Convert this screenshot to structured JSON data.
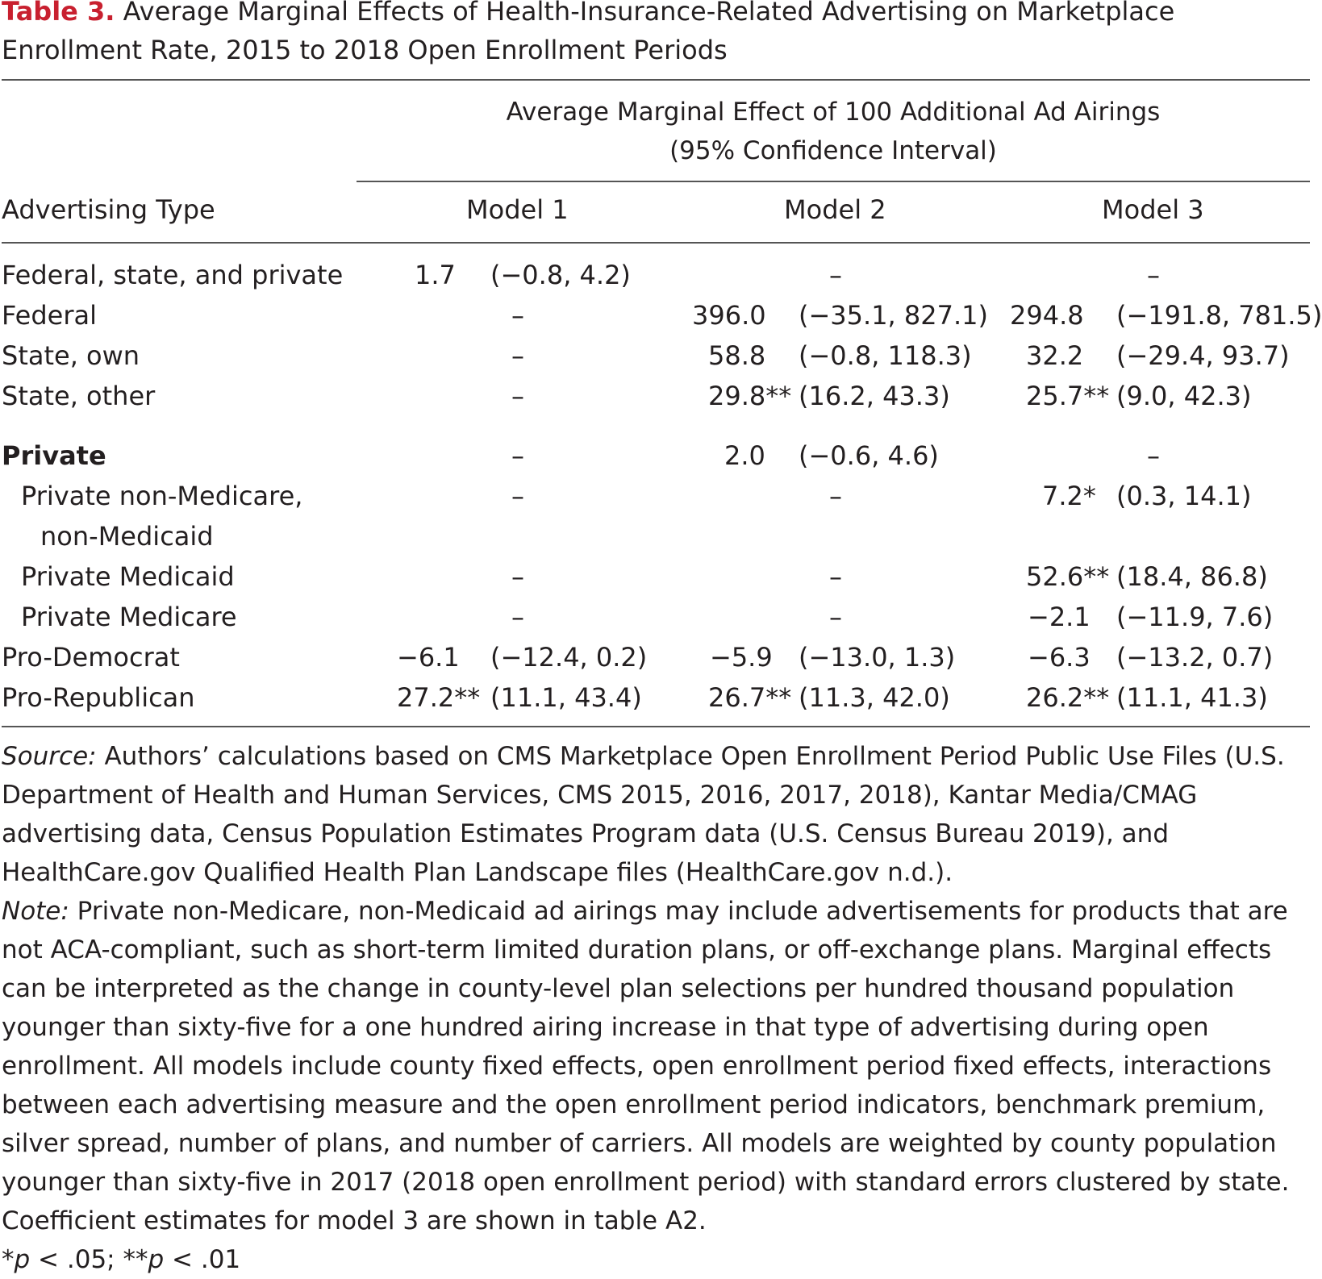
{
  "caption": {
    "table_number": "Table 3.",
    "title": "Average Marginal Effects of Health-Insurance-Related Advertising on Marketplace Enrollment Rate, 2015 to 2018 Open Enrollment Periods"
  },
  "header": {
    "spanner_line1": "Average Marginal Effect of 100 Additional Ad Airings",
    "spanner_line2": "(95% Confidence Interval)",
    "stub": "Advertising Type",
    "model1": "Model 1",
    "model2": "Model 2",
    "model3": "Model 3"
  },
  "rows": [
    {
      "label": "Federal, state, and private",
      "m1_est": "1.7",
      "m1_ci": "(−0.8, 4.2)",
      "m2_dash": "–",
      "m3_dash": "–"
    },
    {
      "label": "Federal",
      "m1_dash": "–",
      "m2_est": "396.0",
      "m2_ci": "(−35.1, 827.1)",
      "m3_est": "294.8",
      "m3_ci": "(−191.8, 781.5)"
    },
    {
      "label": "State, own",
      "m1_dash": "–",
      "m2_est": "58.8",
      "m2_ci": "(−0.8, 118.3)",
      "m3_est": "32.2",
      "m3_ci": "(−29.4, 93.7)"
    },
    {
      "label": "State, other",
      "m1_dash": "–",
      "m2_est": "29.8**",
      "m2_ci": "(16.2, 43.3)",
      "m3_est": "25.7**",
      "m3_ci": "(9.0, 42.3)"
    },
    {
      "label": "Private",
      "m1_dash": "–",
      "m2_est": "2.0",
      "m2_ci": "(−0.6, 4.6)",
      "m3_dash": "–"
    },
    {
      "label": "Private non-Medicare,",
      "label2": "non-Medicaid",
      "m1_dash": "–",
      "m2_dash": "–",
      "m3_est": "7.2*",
      "m3_ci": "(0.3, 14.1)"
    },
    {
      "label": "Private Medicaid",
      "m1_dash": "–",
      "m2_dash": "–",
      "m3_est": "52.6**",
      "m3_ci": "(18.4, 86.8)"
    },
    {
      "label": "Private Medicare",
      "m1_dash": "–",
      "m2_dash": "–",
      "m3_est": "−2.1",
      "m3_ci": "(−11.9, 7.6)"
    },
    {
      "label": "Pro-Democrat",
      "m1_est": "−6.1",
      "m1_ci": "(−12.4, 0.2)",
      "m2_est": "−5.9",
      "m2_ci": "(−13.0, 1.3)",
      "m3_est": "−6.3",
      "m3_ci": "(−13.2, 0.7)"
    },
    {
      "label": "Pro-Republican",
      "m1_est": "27.2**",
      "m1_ci": "(11.1, 43.4)",
      "m2_est": "26.7**",
      "m2_ci": "(11.3, 42.0)",
      "m3_est": "26.2**",
      "m3_ci": "(11.1, 41.3)"
    }
  ],
  "notes": {
    "source_label": "Source:",
    "source_text": " Authors’ calculations based on CMS Marketplace Open Enrollment Period Public Use Files (U.S. Department of Health and Human Services, CMS 2015, 2016, 2017, 2018), Kantar Media/CMAG advertising data, Census Population Estimates Program data (U.S. Census Bureau 2019), and HealthCare.gov Qualified Health Plan Landscape files (HealthCare.gov n.d.).",
    "note_label": "Note:",
    "note_text": " Private non-Medicare, non-Medicaid ad airings may include advertisements for products that are not ACA-compliant, such as short-term limited duration plans, or off-exchange plans. Marginal effects can be interpreted as the change in county-level plan selections per hundred thousand population younger than sixty-five for a one hundred airing increase in that type of advertising during open enrollment. All models include county fixed effects, open enrollment period fixed effects, interactions between each advertising measure and the open enrollment period indicators, benchmark premium, silver spread, number of plans, and number of carriers. All models are weighted by county population younger than sixty-five in 2017 (2018 open enrollment period) with standard errors clustered by state. Coefficient estimates for model 3 are shown in table A2.",
    "sig_1_mark": "*",
    "sig_1_p": "p",
    "sig_1_val": " < .05; ",
    "sig_2_mark": "**",
    "sig_2_p": "p",
    "sig_2_val": " < .01"
  }
}
